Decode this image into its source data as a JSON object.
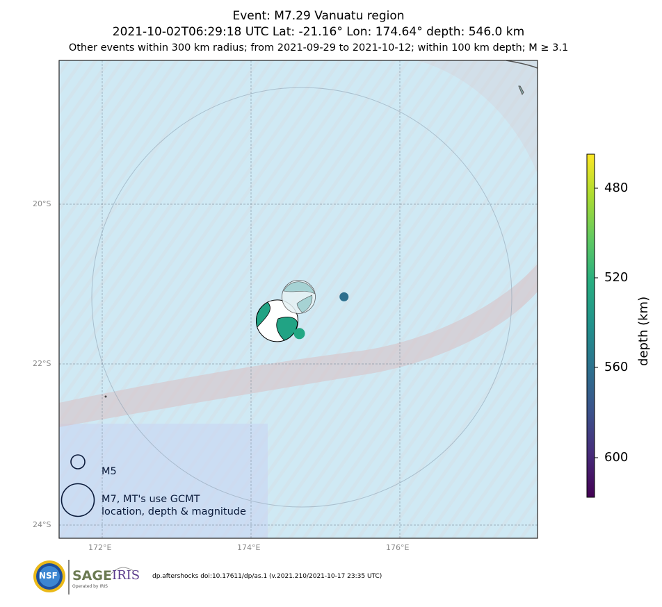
{
  "titles": {
    "line1": "Event: M7.29 Vanuatu region",
    "line2": "2021-10-02T06:29:18 UTC Lat: -21.16° Lon: 174.64° depth: 546.0 km",
    "line3": "Other events within 300 km radius; from 2021-09-29 to 2021-10-12; within 100 km depth; M ≥ 3.1"
  },
  "map": {
    "lat_labels": [
      "20°S",
      "22°S",
      "24°S"
    ],
    "lon_labels": [
      "172°E",
      "174°E",
      "176°E"
    ],
    "radius_km": 300,
    "colors": {
      "water": "#cfe9f4",
      "ridge": "#d9c6c6",
      "grid": "#7a8a99",
      "trench": "#d6bcc0"
    }
  },
  "events": [
    {
      "role": "mainshock-mechanism",
      "lon": 174.35,
      "lat": -21.46,
      "color": "#21a384"
    },
    {
      "role": "secondary-mechanism",
      "lon": 174.64,
      "lat": -21.16,
      "color": "#9fcfcf"
    },
    {
      "role": "aftershock",
      "lon": 174.65,
      "lat": -21.62,
      "color": "#22a884"
    },
    {
      "role": "aftershock",
      "lon": 175.25,
      "lat": -21.16,
      "color": "#2c6f8e"
    }
  ],
  "legend": {
    "m5": "M5",
    "m7_line1": "M7, MT's use GCMT",
    "m7_line2": "location, depth & magnitude"
  },
  "colorbar": {
    "label": "depth (km)",
    "ticks": [
      "480",
      "520",
      "560",
      "600"
    ],
    "range": [
      455,
      615
    ]
  },
  "footer": {
    "doi": "dp.aftershocks doi:10.17611/dp/as.1 (v.2021.210/2021-10-17 23:35 UTC)",
    "nsf": "NSF",
    "sage": "SAGE",
    "iris": "IRIS",
    "operated": "Operated by IRIS"
  }
}
